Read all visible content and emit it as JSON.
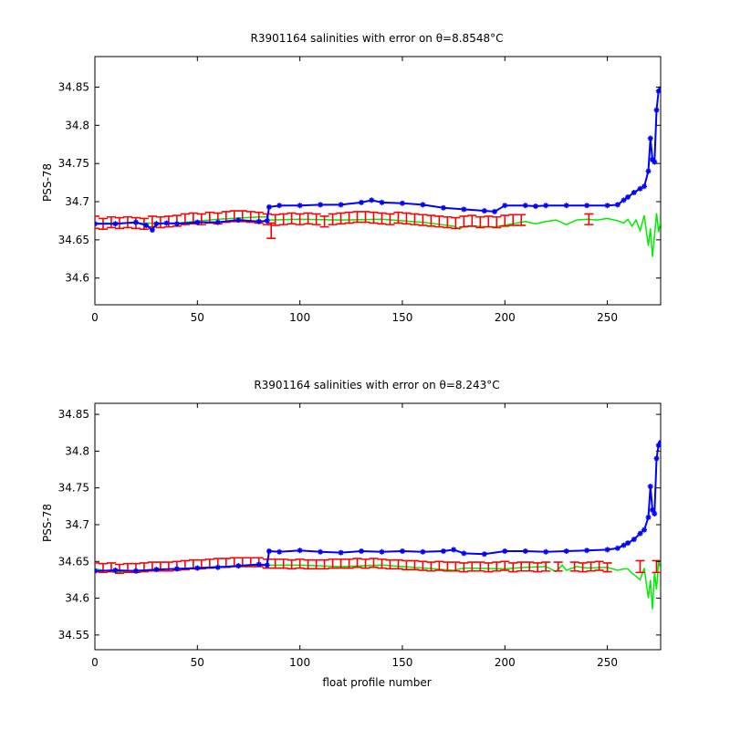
{
  "figure": {
    "background": "#ffffff"
  },
  "chart_data": [
    {
      "type": "line",
      "title": "R3901164 salinities with error on θ=8.8548°C",
      "xlabel": "",
      "ylabel": "PSS-78",
      "xlim": [
        0,
        276
      ],
      "ylim": [
        34.565,
        34.89
      ],
      "xticks": [
        0,
        50,
        100,
        150,
        200,
        250
      ],
      "yticks": [
        34.6,
        34.65,
        34.7,
        34.75,
        34.8,
        34.85
      ],
      "ytick_labels": [
        "34.6",
        "34.65",
        "34.7",
        "34.75",
        "34.8",
        "34.85"
      ],
      "grid": false,
      "series": [
        {
          "color": "#00ee00",
          "style": "line",
          "x": [
            0,
            20,
            40,
            60,
            80,
            84,
            85,
            100,
            120,
            140,
            160,
            175,
            178,
            180,
            195,
            210,
            215,
            220,
            225,
            230,
            235,
            240,
            245,
            250,
            255,
            258,
            260,
            262,
            264,
            266,
            268,
            270,
            271,
            272,
            273,
            274,
            275,
            276
          ],
          "y": [
            34.672,
            34.672,
            34.672,
            34.677,
            34.68,
            34.68,
            34.676,
            34.677,
            34.676,
            34.677,
            34.673,
            34.668,
            34.664,
            34.668,
            34.667,
            34.674,
            34.671,
            34.674,
            34.676,
            34.67,
            34.676,
            34.677,
            34.676,
            34.678,
            34.675,
            34.672,
            34.677,
            34.668,
            34.676,
            34.662,
            34.682,
            34.642,
            34.665,
            34.628,
            34.655,
            34.685,
            34.66,
            34.675
          ]
        },
        {
          "color": "#0000ff",
          "style": "line-with-stars",
          "x": [
            0,
            10,
            20,
            25,
            28,
            30,
            35,
            40,
            50,
            60,
            70,
            80,
            84,
            85,
            90,
            100,
            110,
            120,
            130,
            135,
            140,
            150,
            160,
            170,
            180,
            190,
            195,
            200,
            210,
            215,
            220,
            230,
            240,
            250,
            255,
            258,
            260,
            263,
            266,
            268,
            270,
            271,
            272,
            273,
            274,
            275,
            276
          ],
          "y": [
            34.671,
            34.671,
            34.673,
            34.669,
            34.663,
            34.671,
            34.672,
            34.671,
            34.673,
            34.673,
            34.676,
            34.674,
            34.675,
            34.693,
            34.695,
            34.695,
            34.696,
            34.696,
            34.699,
            34.702,
            34.699,
            34.698,
            34.696,
            34.692,
            34.69,
            34.688,
            34.687,
            34.695,
            34.695,
            34.694,
            34.695,
            34.695,
            34.695,
            34.695,
            34.696,
            34.702,
            34.706,
            34.712,
            34.717,
            34.72,
            34.74,
            34.783,
            34.755,
            34.752,
            34.82,
            34.845,
            34.848
          ]
        }
      ],
      "errorbars": {
        "color": "#ff0000",
        "x": [
          0,
          4,
          8,
          12,
          16,
          20,
          24,
          28,
          32,
          36,
          40,
          44,
          48,
          52,
          56,
          60,
          64,
          68,
          72,
          76,
          80,
          84,
          86,
          88,
          92,
          96,
          100,
          104,
          108,
          112,
          116,
          120,
          124,
          128,
          132,
          136,
          140,
          144,
          148,
          152,
          156,
          160,
          164,
          168,
          172,
          176,
          180,
          184,
          188,
          192,
          196,
          200,
          204,
          208,
          241
        ],
        "y": [
          34.673,
          34.671,
          34.673,
          34.672,
          34.673,
          34.672,
          34.671,
          34.674,
          34.673,
          34.674,
          34.675,
          34.677,
          34.678,
          34.677,
          34.679,
          34.678,
          34.68,
          34.681,
          34.681,
          34.68,
          34.679,
          34.677,
          34.662,
          34.676,
          34.677,
          34.678,
          34.677,
          34.678,
          34.677,
          34.674,
          34.677,
          34.678,
          34.679,
          34.68,
          34.68,
          34.679,
          34.678,
          34.677,
          34.679,
          34.678,
          34.677,
          34.676,
          34.675,
          34.674,
          34.673,
          34.672,
          34.674,
          34.675,
          34.673,
          34.674,
          34.673,
          34.675,
          34.676,
          34.676,
          34.677
        ],
        "err": [
          0.008,
          0.007,
          0.007,
          0.007,
          0.007,
          0.007,
          0.007,
          0.007,
          0.007,
          0.007,
          0.007,
          0.007,
          0.007,
          0.007,
          0.007,
          0.007,
          0.007,
          0.007,
          0.007,
          0.007,
          0.007,
          0.007,
          0.01,
          0.007,
          0.007,
          0.007,
          0.007,
          0.007,
          0.007,
          0.007,
          0.007,
          0.007,
          0.007,
          0.007,
          0.007,
          0.007,
          0.007,
          0.007,
          0.007,
          0.007,
          0.007,
          0.007,
          0.007,
          0.007,
          0.007,
          0.007,
          0.007,
          0.007,
          0.007,
          0.007,
          0.007,
          0.007,
          0.007,
          0.007,
          0.007
        ]
      }
    },
    {
      "type": "line",
      "title": "R3901164 salinities with error on θ=8.243°C",
      "xlabel": "float profile number",
      "ylabel": "PSS-78",
      "xlim": [
        0,
        276
      ],
      "ylim": [
        34.53,
        34.865
      ],
      "xticks": [
        0,
        50,
        100,
        150,
        200,
        250
      ],
      "yticks": [
        34.55,
        34.6,
        34.65,
        34.7,
        34.75,
        34.8,
        34.85
      ],
      "ytick_labels": [
        "34.55",
        "34.6",
        "34.65",
        "34.7",
        "34.75",
        "34.8",
        "34.85"
      ],
      "grid": false,
      "series": [
        {
          "color": "#00ee00",
          "style": "line",
          "x": [
            0,
            10,
            20,
            40,
            60,
            80,
            85,
            100,
            120,
            140,
            160,
            175,
            180,
            200,
            210,
            220,
            225,
            228,
            230,
            235,
            240,
            250,
            255,
            258,
            260,
            262,
            264,
            266,
            268,
            270,
            271,
            272,
            273,
            274,
            275,
            276
          ],
          "y": [
            34.64,
            34.635,
            34.638,
            34.64,
            34.643,
            34.645,
            34.645,
            34.645,
            34.643,
            34.645,
            34.641,
            34.638,
            34.641,
            34.64,
            34.642,
            34.643,
            34.636,
            34.645,
            34.638,
            34.643,
            34.641,
            34.642,
            34.638,
            34.64,
            34.64,
            34.634,
            34.63,
            34.625,
            34.641,
            34.6,
            34.625,
            34.585,
            34.635,
            34.612,
            34.65,
            34.64
          ]
        },
        {
          "color": "#0000ff",
          "style": "line-with-stars",
          "x": [
            0,
            10,
            20,
            30,
            40,
            50,
            60,
            70,
            80,
            84,
            85,
            90,
            100,
            110,
            120,
            130,
            140,
            150,
            160,
            170,
            175,
            180,
            190,
            200,
            210,
            220,
            230,
            240,
            250,
            255,
            258,
            260,
            263,
            266,
            268,
            270,
            271,
            272,
            273,
            274,
            275,
            276
          ],
          "y": [
            34.637,
            34.638,
            34.637,
            34.639,
            34.64,
            34.641,
            34.642,
            34.644,
            34.646,
            34.645,
            34.664,
            34.663,
            34.665,
            34.663,
            34.662,
            34.664,
            34.663,
            34.664,
            34.663,
            34.664,
            34.666,
            34.661,
            34.66,
            34.664,
            34.664,
            34.663,
            34.664,
            34.665,
            34.666,
            34.668,
            34.672,
            34.675,
            34.68,
            34.688,
            34.693,
            34.71,
            34.752,
            34.72,
            34.715,
            34.79,
            34.808,
            34.812
          ]
        }
      ],
      "errorbars": {
        "color": "#ff0000",
        "x": [
          0,
          4,
          8,
          12,
          16,
          20,
          24,
          28,
          32,
          36,
          40,
          44,
          48,
          52,
          56,
          60,
          64,
          68,
          72,
          76,
          80,
          84,
          88,
          92,
          96,
          100,
          104,
          108,
          112,
          116,
          120,
          124,
          128,
          132,
          136,
          140,
          144,
          148,
          152,
          156,
          160,
          164,
          168,
          172,
          176,
          180,
          184,
          188,
          192,
          196,
          200,
          204,
          208,
          212,
          216,
          220,
          226,
          234,
          238,
          242,
          246,
          250,
          266,
          274
        ],
        "y": [
          34.642,
          34.641,
          34.642,
          34.64,
          34.641,
          34.641,
          34.642,
          34.643,
          34.643,
          34.643,
          34.644,
          34.645,
          34.646,
          34.646,
          34.647,
          34.648,
          34.648,
          34.649,
          34.649,
          34.649,
          34.649,
          34.647,
          34.647,
          34.647,
          34.646,
          34.647,
          34.646,
          34.646,
          34.646,
          34.647,
          34.647,
          34.647,
          34.648,
          34.647,
          34.648,
          34.647,
          34.646,
          34.646,
          34.645,
          34.645,
          34.644,
          34.643,
          34.644,
          34.643,
          34.643,
          34.642,
          34.643,
          34.643,
          34.642,
          34.643,
          34.644,
          34.642,
          34.643,
          34.643,
          34.642,
          34.643,
          34.643,
          34.643,
          34.642,
          34.643,
          34.644,
          34.642,
          34.643,
          34.643
        ],
        "err": [
          0.006,
          0.006,
          0.006,
          0.006,
          0.006,
          0.006,
          0.006,
          0.006,
          0.006,
          0.006,
          0.006,
          0.006,
          0.006,
          0.006,
          0.006,
          0.006,
          0.006,
          0.006,
          0.006,
          0.006,
          0.006,
          0.006,
          0.006,
          0.006,
          0.006,
          0.006,
          0.006,
          0.006,
          0.006,
          0.006,
          0.006,
          0.006,
          0.006,
          0.006,
          0.006,
          0.006,
          0.006,
          0.006,
          0.006,
          0.006,
          0.006,
          0.006,
          0.006,
          0.006,
          0.006,
          0.006,
          0.006,
          0.006,
          0.006,
          0.006,
          0.006,
          0.006,
          0.006,
          0.006,
          0.006,
          0.006,
          0.006,
          0.006,
          0.006,
          0.006,
          0.006,
          0.006,
          0.008,
          0.008
        ]
      }
    }
  ]
}
